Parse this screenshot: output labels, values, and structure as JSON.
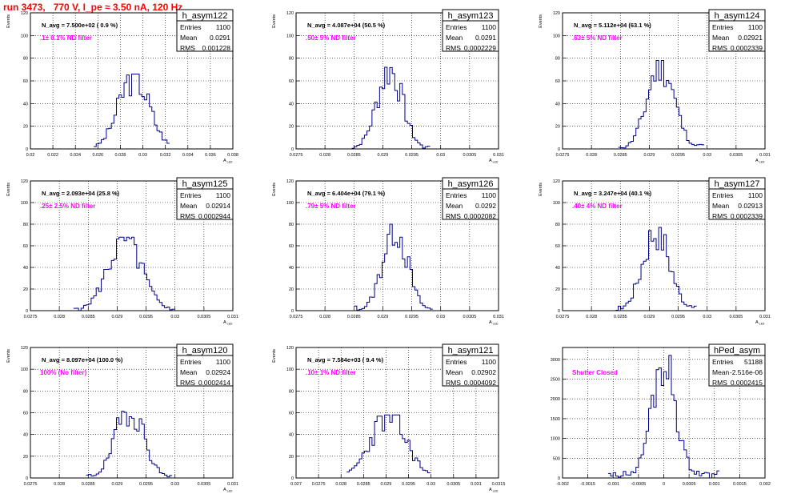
{
  "title": "run 3473,   770 V, I_pe ≈ 3.50 nA, 120 Hz",
  "y_axis_label": "Events",
  "stats_labels": {
    "entries": "Entries",
    "mean": "Mean",
    "rms": "RMS"
  },
  "chart_data": [
    {
      "type": "bar",
      "name": "h_asym122",
      "navg": "N_avg = 7.500e+02 ( 0.9 %)",
      "note": ".1± 0.1% ND filter",
      "entries": "1100",
      "mean": "0.0291",
      "rms": "0.001228",
      "xlabel": "A_LED",
      "ylabel": "Events",
      "xlim": [
        0.02,
        0.038
      ],
      "ylim": [
        0,
        120
      ],
      "xticks": [
        "0.02",
        "0.022",
        "0.024",
        "0.026",
        "0.028",
        "0.03",
        "0.032",
        "0.034",
        "0.036",
        "0.038"
      ],
      "yticks": [
        "0",
        "20",
        "40",
        "60",
        "80",
        "100",
        "120"
      ],
      "peak": 66,
      "peak_x": 0.0292,
      "sd": 0.00135,
      "start_x": 0.0256,
      "end_x": 0.0324,
      "seed": 3
    },
    {
      "type": "bar",
      "name": "h_asym123",
      "navg": "N_avg = 4.087e+04 (50.5 %)",
      "note": ".50± 5% ND filter",
      "entries": "1100",
      "mean": "0.0291",
      "rms": "0.0002229",
      "xlabel": "A_LED",
      "ylabel": "Events",
      "xlim": [
        0.0275,
        0.031
      ],
      "ylim": [
        0,
        120
      ],
      "xticks": [
        "0.0275",
        "0.028",
        "0.0285",
        "0.029",
        "0.0295",
        "0.03",
        "0.0305",
        "0.031"
      ],
      "yticks": [
        "0",
        "20",
        "40",
        "60",
        "80",
        "100",
        "120"
      ],
      "peak": 72,
      "peak_x": 0.02912,
      "sd": 0.00022,
      "start_x": 0.02845,
      "end_x": 0.0298,
      "seed": 7
    },
    {
      "type": "bar",
      "name": "h_asym124",
      "navg": "N_avg = 5.112e+04 (63.1 %)",
      "note": ".63± 5% ND filter",
      "entries": "1100",
      "mean": "0.02921",
      "rms": "0.0002339",
      "xlabel": "A_LED",
      "ylabel": "Events",
      "xlim": [
        0.0275,
        0.031
      ],
      "ylim": [
        0,
        120
      ],
      "xticks": [
        "0.0275",
        "0.028",
        "0.0285",
        "0.029",
        "0.0295",
        "0.03",
        "0.0305",
        "0.031"
      ],
      "yticks": [
        "0",
        "20",
        "40",
        "60",
        "80",
        "100",
        "120"
      ],
      "peak": 78,
      "peak_x": 0.0292,
      "sd": 0.00023,
      "start_x": 0.02845,
      "end_x": 0.02995,
      "seed": 11
    },
    {
      "type": "bar",
      "name": "h_asym125",
      "navg": "N_avg = 2.093e+04 (25.8 %)",
      "note": ".25± 2.5% ND filter",
      "entries": "1100",
      "mean": "0.02914",
      "rms": "0.0002944",
      "xlabel": "A_LED",
      "ylabel": "Events",
      "xlim": [
        0.0275,
        0.031
      ],
      "ylim": [
        0,
        120
      ],
      "xticks": [
        "0.0275",
        "0.028",
        "0.0285",
        "0.029",
        "0.0295",
        "0.03",
        "0.0305",
        "0.031"
      ],
      "yticks": [
        "0",
        "20",
        "40",
        "60",
        "80",
        "100",
        "120"
      ],
      "peak": 68,
      "peak_x": 0.02913,
      "sd": 0.00029,
      "start_x": 0.02825,
      "end_x": 0.03,
      "seed": 5
    },
    {
      "type": "bar",
      "name": "h_asym126",
      "navg": "N_avg = 6.404e+04 (79.1 %)",
      "note": ".79± 5% ND filter",
      "entries": "1100",
      "mean": "0.0292",
      "rms": "0.0002082",
      "xlabel": "A_LED",
      "ylabel": "Events",
      "xlim": [
        0.0275,
        0.031
      ],
      "ylim": [
        0,
        120
      ],
      "xticks": [
        "0.0275",
        "0.028",
        "0.0285",
        "0.029",
        "0.0295",
        "0.03",
        "0.0305",
        "0.031"
      ],
      "yticks": [
        "0",
        "20",
        "40",
        "60",
        "80",
        "100",
        "120"
      ],
      "peak": 80,
      "peak_x": 0.02921,
      "sd": 0.00021,
      "start_x": 0.0285,
      "end_x": 0.02985,
      "seed": 13
    },
    {
      "type": "bar",
      "name": "h_asym127",
      "navg": "N_avg = 3.247e+04 (40.1 %)",
      "note": ".40± 4% ND filter",
      "entries": "1100",
      "mean": "0.02913",
      "rms": "0.0002339",
      "xlabel": "A_LED",
      "ylabel": "Events",
      "xlim": [
        0.0275,
        0.031
      ],
      "ylim": [
        0,
        120
      ],
      "xticks": [
        "0.0275",
        "0.028",
        "0.0285",
        "0.029",
        "0.0295",
        "0.03",
        "0.0305",
        "0.031"
      ],
      "yticks": [
        "0",
        "20",
        "40",
        "60",
        "80",
        "100",
        "120"
      ],
      "peak": 77,
      "peak_x": 0.02912,
      "sd": 0.00023,
      "start_x": 0.0284,
      "end_x": 0.0298,
      "seed": 17
    },
    {
      "type": "bar",
      "name": "h_asym120",
      "navg": "N_avg = 8.097e+04 (100.0 %)",
      "note": "100% (No filter)",
      "entries": "1100",
      "mean": "0.02924",
      "rms": "0.0002414",
      "xlabel": "A_LED",
      "ylabel": "Events",
      "xlim": [
        0.0275,
        0.031
      ],
      "ylim": [
        0,
        120
      ],
      "xticks": [
        "0.0275",
        "0.028",
        "0.0285",
        "0.029",
        "0.0295",
        "0.03",
        "0.0305",
        "0.031"
      ],
      "yticks": [
        "0",
        "20",
        "40",
        "60",
        "80",
        "100",
        "120"
      ],
      "peak": 67,
      "peak_x": 0.02922,
      "sd": 0.00024,
      "start_x": 0.02848,
      "end_x": 0.02995,
      "seed": 19
    },
    {
      "type": "bar",
      "name": "h_asym121",
      "navg": "N_avg = 7.584e+03 ( 9.4 %)",
      "note": ".10± 1% ND filter",
      "entries": "1100",
      "mean": "0.02902",
      "rms": "0.0004092",
      "xlabel": "A_LED",
      "ylabel": "Events",
      "xlim": [
        0.027,
        0.0315
      ],
      "ylim": [
        0,
        120
      ],
      "xticks": [
        "0.027",
        "0.0275",
        "0.028",
        "0.0285",
        "0.029",
        "0.0295",
        "0.03",
        "0.0305",
        "0.031",
        "0.0315"
      ],
      "yticks": [
        "0",
        "20",
        "40",
        "60",
        "80",
        "100",
        "120"
      ],
      "peak": 58,
      "peak_x": 0.02905,
      "sd": 0.0004,
      "start_x": 0.0281,
      "end_x": 0.03,
      "seed": 23
    },
    {
      "type": "bar",
      "name": "hPed_asym",
      "navg": "",
      "note": "Shutter Closed",
      "entries": "51188",
      "mean": "-2.516e-06",
      "rms": "0.0002415",
      "xlabel": "",
      "ylabel": "",
      "xlim": [
        -0.002,
        0.002
      ],
      "ylim": [
        0,
        3300
      ],
      "xticks": [
        "-0.002",
        "-0.0015",
        "-0.001",
        "-0.0005",
        "0",
        "0.0005",
        "0.001",
        "0.0015",
        "0.002"
      ],
      "yticks": [
        "0",
        "500",
        "1000",
        "1500",
        "2000",
        "2500",
        "3000"
      ],
      "peak": 3100,
      "peak_x": 0.0,
      "sd": 0.00024,
      "start_x": -0.0011,
      "end_x": 0.0011,
      "seed": 29
    }
  ]
}
